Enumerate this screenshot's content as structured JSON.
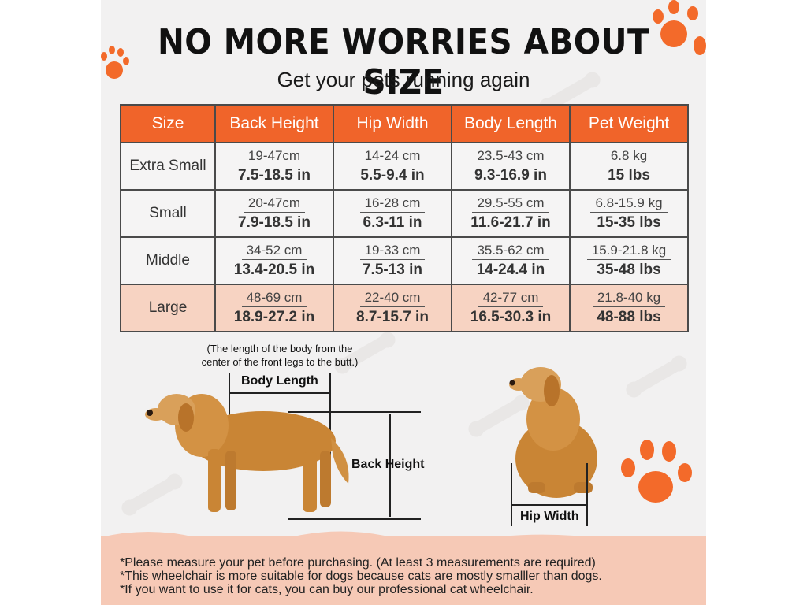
{
  "header": {
    "title": "NO MORE WORRIES ABOUT SIZE",
    "subtitle": "Get your pets running again"
  },
  "table": {
    "columns": [
      "Size",
      "Back Height",
      "Hip Width",
      "Body Length",
      "Pet Weight"
    ],
    "rows": [
      {
        "size": "Extra Small",
        "back_cm": "19-47cm",
        "back_in": "7.5-18.5 in",
        "hip_cm": "14-24 cm",
        "hip_in": "5.5-9.4 in",
        "body_cm": "23.5-43 cm",
        "body_in": "9.3-16.9 in",
        "weight_kg": "6.8 kg",
        "weight_lbs": "15 lbs"
      },
      {
        "size": "Small",
        "back_cm": "20-47cm",
        "back_in": "7.9-18.5 in",
        "hip_cm": "16-28 cm",
        "hip_in": "6.3-11 in",
        "body_cm": "29.5-55 cm",
        "body_in": "11.6-21.7 in",
        "weight_kg": "6.8-15.9 kg",
        "weight_lbs": "15-35 lbs"
      },
      {
        "size": "Middle",
        "back_cm": "34-52 cm",
        "back_in": "13.4-20.5 in",
        "hip_cm": "19-33 cm",
        "hip_in": "7.5-13 in",
        "body_cm": "35.5-62 cm",
        "body_in": "14-24.4 in",
        "weight_kg": "15.9-21.8 kg",
        "weight_lbs": "35-48 lbs"
      },
      {
        "size": "Large",
        "back_cm": "48-69 cm",
        "back_in": "18.9-27.2 in",
        "hip_cm": "22-40 cm",
        "hip_in": "8.7-15.7 in",
        "body_cm": "42-77 cm",
        "body_in": "16.5-30.3 in",
        "weight_kg": "21.8-40 kg",
        "weight_lbs": "48-88 lbs"
      }
    ]
  },
  "diagram": {
    "body_length_note_1": "(The length of the body from the",
    "body_length_note_2": "center of the front legs to the butt.)",
    "body_length_label": "Body Length",
    "back_height_label": "Back Height",
    "hip_width_label": "Hip Width"
  },
  "footnotes": [
    "*Please measure your pet before purchasing. (At least 3 measurements are required)",
    "*This wheelchair is more suitable for dogs because cats are mostly smalller than dogs.",
    "*If you want to use it for cats, you can buy our professional cat wheelchair."
  ],
  "colors": {
    "accent": "#f0642a",
    "large_row": "#f7d3c2",
    "footer": "#f6c9b6",
    "dog": "#c98535"
  }
}
